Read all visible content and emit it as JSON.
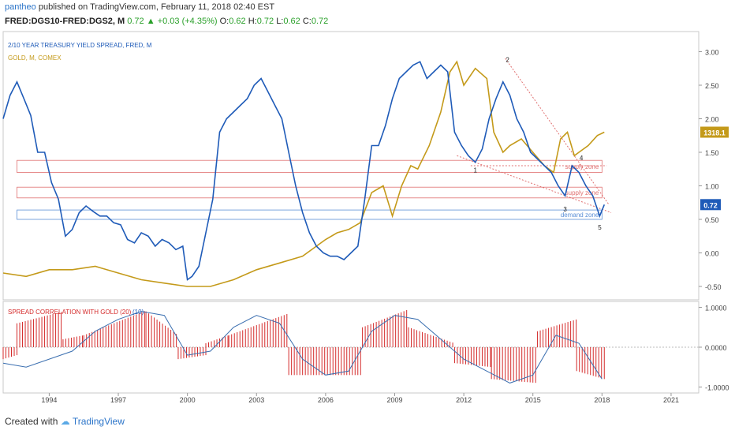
{
  "header": {
    "author": "pantheo",
    "published_text": "published on TradingView.com, February 11, 2018 02:40 EST",
    "symbol": "FRED:DGS10-FRED:DGS2, M",
    "last": "0.72",
    "change": "+0.03 (+4.35%)",
    "o_label": "O:",
    "o": "0.62",
    "h_label": "H:",
    "h": "0.72",
    "l_label": "L:",
    "l": "0.62",
    "c_label": "C:",
    "c": "0.72"
  },
  "footer": {
    "created_with": "Created with",
    "brand": "TradingView"
  },
  "colors": {
    "spread": "#1f5bb8",
    "gold": "#c49a1a",
    "supply": "#e07070",
    "demand": "#5b8fd6",
    "hist": "#d42a2a",
    "corr_line": "#3b6fb0"
  },
  "chart_data": [
    {
      "type": "line",
      "pane": "price",
      "title_series_1": "2/10 YEAR TREASURY YIELD SPREAD, FRED, M",
      "title_series_2": "GOLD, M, COMEX",
      "x_ticks": [
        "1994",
        "1997",
        "2000",
        "2003",
        "2006",
        "2009",
        "2012",
        "2015",
        "2018",
        "2021"
      ],
      "y_ticks": [
        "3.00",
        "2.50",
        "2.00",
        "1.50",
        "1.00",
        "0.50",
        "0.00",
        "-0.50"
      ],
      "ylim": [
        -0.7,
        3.3
      ],
      "xlim": [
        1992.0,
        2022.2
      ],
      "series": [
        {
          "name": "2/10 YEAR TREASURY YIELD SPREAD, FRED, M",
          "last_label": "0.72",
          "x": [
            1992.0,
            1992.3,
            1992.6,
            1992.9,
            1993.2,
            1993.5,
            1993.8,
            1994.1,
            1994.4,
            1994.7,
            1995.0,
            1995.3,
            1995.6,
            1995.9,
            1996.2,
            1996.5,
            1996.8,
            1997.1,
            1997.4,
            1997.7,
            1998.0,
            1998.3,
            1998.6,
            1998.9,
            1999.2,
            1999.5,
            1999.8,
            2000.0,
            2000.2,
            2000.5,
            2000.8,
            2001.1,
            2001.4,
            2001.7,
            2002.0,
            2002.3,
            2002.6,
            2002.9,
            2003.2,
            2003.5,
            2003.8,
            2004.1,
            2004.4,
            2004.7,
            2005.0,
            2005.3,
            2005.6,
            2005.9,
            2006.2,
            2006.5,
            2006.8,
            2007.1,
            2007.4,
            2007.7,
            2008.0,
            2008.3,
            2008.6,
            2008.9,
            2009.2,
            2009.5,
            2009.8,
            2010.1,
            2010.4,
            2010.7,
            2011.0,
            2011.3,
            2011.6,
            2011.9,
            2012.2,
            2012.5,
            2012.8,
            2013.1,
            2013.4,
            2013.7,
            2014.0,
            2014.3,
            2014.6,
            2014.9,
            2015.2,
            2015.5,
            2015.8,
            2016.1,
            2016.4,
            2016.7,
            2017.0,
            2017.3,
            2017.6,
            2017.9,
            2018.1
          ],
          "y": [
            2.0,
            2.35,
            2.55,
            2.3,
            2.05,
            1.5,
            1.5,
            1.05,
            0.8,
            0.25,
            0.35,
            0.6,
            0.7,
            0.62,
            0.55,
            0.55,
            0.45,
            0.42,
            0.2,
            0.15,
            0.3,
            0.25,
            0.1,
            0.2,
            0.15,
            0.05,
            0.1,
            -0.4,
            -0.35,
            -0.2,
            0.3,
            0.8,
            1.8,
            2.0,
            2.1,
            2.2,
            2.3,
            2.5,
            2.6,
            2.4,
            2.2,
            2.0,
            1.5,
            1.0,
            0.6,
            0.3,
            0.1,
            0.0,
            -0.05,
            -0.05,
            -0.1,
            0.0,
            0.1,
            0.8,
            1.6,
            1.6,
            1.9,
            2.3,
            2.6,
            2.7,
            2.8,
            2.85,
            2.6,
            2.7,
            2.8,
            2.7,
            1.8,
            1.6,
            1.45,
            1.35,
            1.55,
            2.0,
            2.3,
            2.55,
            2.35,
            2.0,
            1.8,
            1.5,
            1.4,
            1.3,
            1.2,
            1.0,
            0.85,
            1.3,
            1.2,
            1.0,
            0.85,
            0.55,
            0.72
          ]
        },
        {
          "name": "GOLD, M, COMEX",
          "last_label": "1318.1",
          "x": [
            1992.0,
            1993.0,
            1994.0,
            1995.0,
            1996.0,
            1997.0,
            1998.0,
            1999.0,
            2000.0,
            2001.0,
            2002.0,
            2003.0,
            2004.0,
            2005.0,
            2006.0,
            2006.5,
            2007.0,
            2007.5,
            2008.0,
            2008.5,
            2008.9,
            2009.3,
            2009.7,
            2010.0,
            2010.5,
            2011.0,
            2011.4,
            2011.7,
            2012.0,
            2012.5,
            2013.0,
            2013.3,
            2013.7,
            2014.0,
            2014.5,
            2015.0,
            2015.5,
            2015.9,
            2016.2,
            2016.5,
            2016.8,
            2017.0,
            2017.4,
            2017.8,
            2018.1
          ],
          "y": [
            -0.3,
            -0.35,
            -0.25,
            -0.25,
            -0.2,
            -0.3,
            -0.4,
            -0.45,
            -0.5,
            -0.5,
            -0.4,
            -0.25,
            -0.15,
            -0.05,
            0.2,
            0.3,
            0.35,
            0.45,
            0.9,
            1.0,
            0.55,
            1.0,
            1.3,
            1.25,
            1.6,
            2.1,
            2.7,
            2.85,
            2.5,
            2.75,
            2.6,
            1.8,
            1.5,
            1.6,
            1.7,
            1.5,
            1.3,
            1.2,
            1.7,
            1.8,
            1.45,
            1.5,
            1.6,
            1.75,
            1.8
          ]
        }
      ],
      "annotations": {
        "zones": [
          {
            "label": "supply zone",
            "y_low": 1.2,
            "y_high": 1.38
          },
          {
            "label": "supply zone",
            "y_low": 0.82,
            "y_high": 0.98
          },
          {
            "label": "demand zone",
            "y_low": 0.5,
            "y_high": 0.64
          }
        ],
        "wave_labels": [
          "1",
          "2",
          "3",
          "4",
          "5"
        ]
      }
    },
    {
      "type": "bar",
      "pane": "indicator",
      "title": "SPREAD CORRELATION WITH GOLD (20)",
      "param_2": "(10)",
      "y_ticks": [
        "1.0000",
        "0.0000",
        "-1.0000"
      ],
      "ylim": [
        -1.15,
        1.15
      ],
      "x_range": [
        1992.0,
        2018.1
      ],
      "segments": [
        {
          "x0": 1992.0,
          "x1": 1992.6,
          "v0": -0.3,
          "v1": -0.2
        },
        {
          "x0": 1992.6,
          "x1": 1994.6,
          "v0": 0.6,
          "v1": 0.9
        },
        {
          "x0": 1994.6,
          "x1": 1995.5,
          "v0": 0.2,
          "v1": 0.3
        },
        {
          "x0": 1995.5,
          "x1": 1998.2,
          "v0": 0.3,
          "v1": 0.92
        },
        {
          "x0": 1998.2,
          "x1": 1999.6,
          "v0": 0.9,
          "v1": 0.3
        },
        {
          "x0": 1999.6,
          "x1": 2000.8,
          "v0": -0.3,
          "v1": -0.2
        },
        {
          "x0": 2000.8,
          "x1": 2001.8,
          "v0": 0.1,
          "v1": 0.3
        },
        {
          "x0": 2001.8,
          "x1": 2004.4,
          "v0": 0.3,
          "v1": 0.85
        },
        {
          "x0": 2004.4,
          "x1": 2007.6,
          "v0": -0.7,
          "v1": -0.7
        },
        {
          "x0": 2007.6,
          "x1": 2009.6,
          "v0": 0.5,
          "v1": 0.95
        },
        {
          "x0": 2009.6,
          "x1": 2011.6,
          "v0": 0.5,
          "v1": 0.1
        },
        {
          "x0": 2011.6,
          "x1": 2013.2,
          "v0": -0.4,
          "v1": -0.5
        },
        {
          "x0": 2013.2,
          "x1": 2015.2,
          "v0": -0.8,
          "v1": -0.9
        },
        {
          "x0": 2015.2,
          "x1": 2016.9,
          "v0": 0.4,
          "v1": 0.7
        },
        {
          "x0": 2016.9,
          "x1": 2018.1,
          "v0": -0.6,
          "v1": -0.8
        }
      ],
      "line": {
        "x": [
          1992.0,
          1993.0,
          1994.0,
          1995.0,
          1996.0,
          1997.0,
          1998.0,
          1999.0,
          2000.0,
          2001.0,
          2002.0,
          2003.0,
          2004.0,
          2005.0,
          2006.0,
          2007.0,
          2008.0,
          2009.0,
          2010.0,
          2011.0,
          2012.0,
          2013.0,
          2014.0,
          2015.0,
          2016.0,
          2017.0,
          2018.0
        ],
        "y": [
          -0.4,
          -0.5,
          -0.3,
          -0.1,
          0.4,
          0.7,
          0.9,
          0.8,
          -0.2,
          -0.1,
          0.5,
          0.8,
          0.6,
          -0.3,
          -0.7,
          -0.6,
          0.4,
          0.8,
          0.7,
          0.2,
          -0.3,
          -0.6,
          -0.9,
          -0.7,
          0.3,
          0.1,
          -0.8
        ]
      }
    }
  ]
}
